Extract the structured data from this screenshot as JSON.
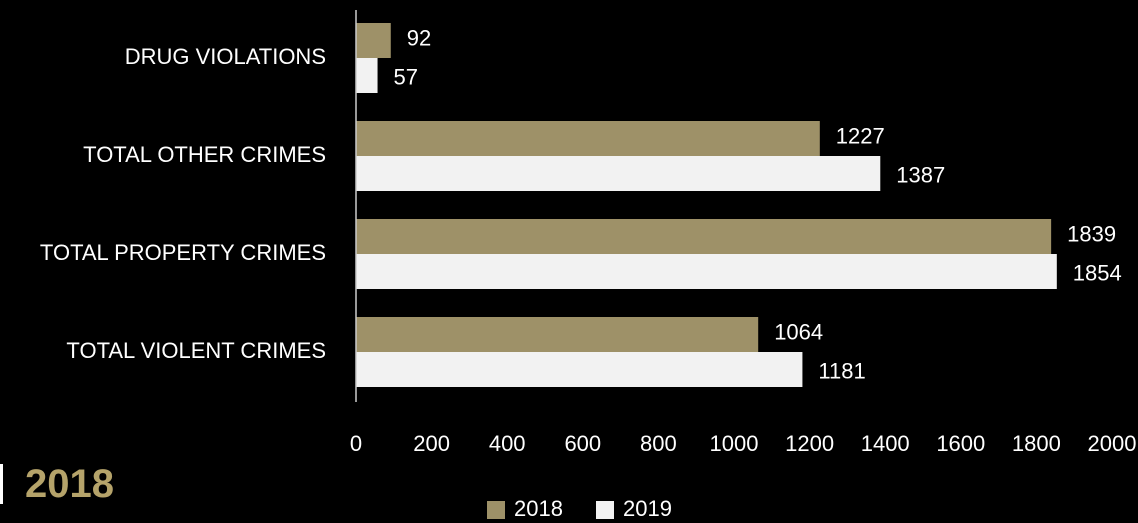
{
  "colors": {
    "background": "#000000",
    "series_2018": "#9e9168",
    "series_2019": "#f2f2f2",
    "accent_text": "#b5a36a",
    "axis": "#cccccc"
  },
  "year_heading": "2018",
  "chart_data": {
    "type": "bar",
    "orientation": "horizontal",
    "categories": [
      "DRUG VIOLATIONS",
      "TOTAL OTHER CRIMES",
      "TOTAL PROPERTY CRIMES",
      "TOTAL VIOLENT CRIMES"
    ],
    "series": [
      {
        "name": "2018",
        "values": [
          92,
          1227,
          1839,
          1064
        ]
      },
      {
        "name": "2019",
        "values": [
          57,
          1387,
          1854,
          1181
        ]
      }
    ],
    "xlim": [
      0,
      2000
    ],
    "x_ticks": [
      "0",
      "200",
      "400",
      "600",
      "800",
      "1000",
      "1200",
      "1400",
      "1600",
      "1800",
      "2000"
    ],
    "legend_position": "bottom",
    "grid": false,
    "data_labels": true,
    "title": "",
    "xlabel": "",
    "ylabel": ""
  }
}
